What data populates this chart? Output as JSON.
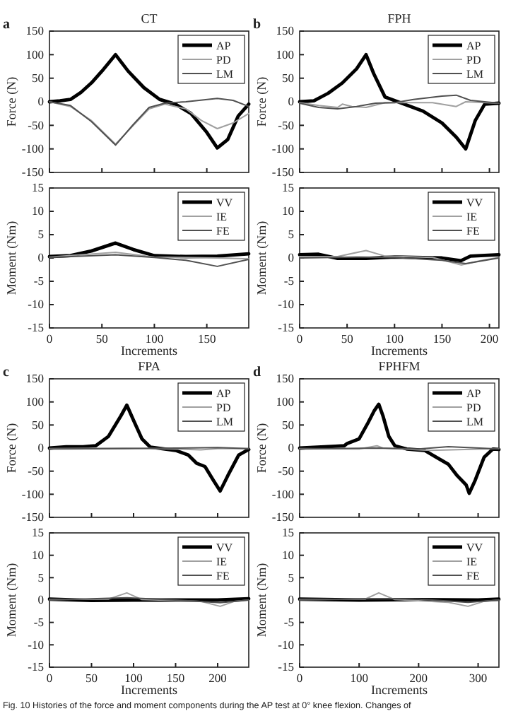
{
  "chart_data": [
    {
      "type": "line",
      "title": "CT",
      "ylabel": "Force (N)",
      "annotations": [
        "a"
      ],
      "xlim": [
        0,
        190
      ],
      "xticks": [
        0,
        50,
        100,
        150
      ],
      "ylim": [
        -150,
        150
      ],
      "yticks": [
        -150,
        -100,
        -50,
        0,
        50,
        100,
        150
      ],
      "tick_labels": "y",
      "legend": "top right",
      "series": [
        {
          "name": "AP",
          "color": "#000000",
          "x": [
            0,
            10,
            20,
            30,
            40,
            50,
            63,
            75,
            90,
            105,
            120,
            135,
            150,
            160,
            170,
            180,
            190
          ],
          "values": [
            0,
            2,
            5,
            20,
            40,
            65,
            100,
            65,
            30,
            5,
            -5,
            -25,
            -65,
            -98,
            -80,
            -30,
            -5
          ]
        },
        {
          "name": "PD",
          "color": "#a0a0a0",
          "x": [
            0,
            20,
            40,
            63,
            80,
            95,
            110,
            130,
            145,
            160,
            175,
            190
          ],
          "values": [
            0,
            -10,
            -40,
            -90,
            -50,
            -15,
            -5,
            -15,
            -40,
            -57,
            -45,
            -25
          ]
        },
        {
          "name": "LM",
          "color": "#505050",
          "x": [
            0,
            20,
            40,
            63,
            80,
            95,
            110,
            130,
            160,
            175,
            190
          ],
          "values": [
            0,
            -8,
            -42,
            -92,
            -48,
            -12,
            -3,
            0,
            7,
            3,
            -10
          ]
        }
      ]
    },
    {
      "type": "line",
      "xlabel": "Increments",
      "ylabel": "Moment (Nm)",
      "xlim": [
        0,
        190
      ],
      "xticks": [
        0,
        50,
        100,
        150
      ],
      "ylim": [
        -15,
        15
      ],
      "yticks": [
        -15,
        -10,
        -5,
        0,
        5,
        10,
        15
      ],
      "legend": "top right",
      "series": [
        {
          "name": "VV",
          "color": "#000000",
          "x": [
            0,
            20,
            40,
            63,
            80,
            100,
            130,
            160,
            190
          ],
          "values": [
            0.3,
            0.5,
            1.5,
            3.2,
            1.8,
            0.5,
            0.3,
            0.4,
            0.9
          ]
        },
        {
          "name": "IE",
          "color": "#a0a0a0",
          "x": [
            0,
            63,
            100,
            160,
            190
          ],
          "values": [
            0.2,
            1.2,
            0.2,
            0,
            -0.2
          ]
        },
        {
          "name": "FE",
          "color": "#505050",
          "x": [
            0,
            63,
            100,
            130,
            160,
            190
          ],
          "values": [
            0.1,
            0.7,
            0.1,
            -0.5,
            -1.8,
            -0.3
          ]
        }
      ]
    },
    {
      "type": "line",
      "title": "FPH",
      "ylabel": "Force (N)",
      "annotations": [
        "b"
      ],
      "xlim": [
        0,
        210
      ],
      "xticks": [
        0,
        50,
        100,
        150,
        200
      ],
      "ylim": [
        -150,
        150
      ],
      "yticks": [
        -150,
        -100,
        -50,
        0,
        50,
        100,
        150
      ],
      "tick_labels": "y",
      "legend": "top right",
      "series": [
        {
          "name": "AP",
          "color": "#000000",
          "x": [
            0,
            15,
            30,
            45,
            60,
            70,
            78,
            90,
            110,
            130,
            150,
            165,
            175,
            185,
            195,
            210
          ],
          "values": [
            0,
            2,
            18,
            40,
            70,
            100,
            60,
            10,
            -5,
            -20,
            -45,
            -75,
            -100,
            -40,
            -5,
            -3
          ]
        },
        {
          "name": "PD",
          "color": "#a0a0a0",
          "x": [
            0,
            20,
            40,
            45,
            55,
            70,
            90,
            110,
            140,
            165,
            175,
            210
          ],
          "values": [
            -2,
            -8,
            -12,
            -5,
            -10,
            -12,
            -2,
            -2,
            -2,
            -10,
            0,
            -3
          ]
        },
        {
          "name": "LM",
          "color": "#505050",
          "x": [
            0,
            20,
            40,
            60,
            80,
            100,
            120,
            150,
            165,
            180,
            210
          ],
          "values": [
            -3,
            -12,
            -15,
            -10,
            -3,
            -2,
            5,
            12,
            14,
            3,
            -3
          ]
        }
      ]
    },
    {
      "type": "line",
      "xlabel": "Increments",
      "ylabel": "Moment (Nm)",
      "xlim": [
        0,
        210
      ],
      "xticks": [
        0,
        50,
        100,
        150,
        200
      ],
      "ylim": [
        -15,
        15
      ],
      "yticks": [
        -15,
        -10,
        -5,
        0,
        5,
        10,
        15
      ],
      "legend": "top right",
      "series": [
        {
          "name": "VV",
          "color": "#000000",
          "x": [
            0,
            20,
            40,
            70,
            100,
            150,
            170,
            180,
            210
          ],
          "values": [
            0.7,
            0.8,
            -0.1,
            -0.1,
            0.2,
            0,
            -0.6,
            0.4,
            0.7
          ]
        },
        {
          "name": "IE",
          "color": "#a0a0a0",
          "x": [
            0,
            40,
            70,
            90,
            140,
            170,
            190,
            210
          ],
          "values": [
            0.3,
            0.3,
            1.6,
            0.4,
            0.1,
            -1.5,
            -0.6,
            0.1
          ]
        },
        {
          "name": "FE",
          "color": "#505050",
          "x": [
            0,
            60,
            100,
            150,
            175,
            210
          ],
          "values": [
            0,
            0.2,
            0.1,
            -0.5,
            -1.2,
            0
          ]
        }
      ]
    },
    {
      "type": "line",
      "title": "FPA",
      "ylabel": "Force (N)",
      "annotations": [
        "c"
      ],
      "xlim": [
        0,
        237
      ],
      "xticks": [
        0,
        50,
        100,
        150,
        200
      ],
      "ylim": [
        -150,
        150
      ],
      "yticks": [
        -150,
        -100,
        -50,
        0,
        50,
        100,
        150
      ],
      "tick_labels": "y",
      "legend": "top right",
      "series": [
        {
          "name": "AP",
          "color": "#000000",
          "x": [
            0,
            20,
            40,
            55,
            70,
            85,
            92,
            100,
            110,
            120,
            150,
            165,
            175,
            185,
            195,
            203,
            212,
            225,
            237
          ],
          "values": [
            0,
            3,
            3,
            5,
            25,
            70,
            93,
            60,
            20,
            2,
            -5,
            -15,
            -33,
            -40,
            -70,
            -93,
            -60,
            -15,
            -3
          ]
        },
        {
          "name": "PD",
          "color": "#a0a0a0",
          "x": [
            0,
            90,
            150,
            180,
            200,
            237
          ],
          "values": [
            -1,
            0,
            -2,
            -4,
            -1,
            -1
          ]
        },
        {
          "name": "LM",
          "color": "#505050",
          "x": [
            0,
            90,
            150,
            200,
            237
          ],
          "values": [
            -2,
            -1,
            0,
            1,
            -1
          ]
        }
      ]
    },
    {
      "type": "line",
      "xlabel": "Increments",
      "ylabel": "Moment (Nm)",
      "xlim": [
        0,
        237
      ],
      "xticks": [
        0,
        50,
        100,
        150,
        200
      ],
      "ylim": [
        -15,
        15
      ],
      "yticks": [
        -15,
        -10,
        -5,
        0,
        5,
        10,
        15
      ],
      "legend": "top right",
      "series": [
        {
          "name": "VV",
          "color": "#000000",
          "x": [
            0,
            50,
            100,
            150,
            200,
            237
          ],
          "values": [
            0.2,
            -0.1,
            0,
            0,
            0,
            0.3
          ]
        },
        {
          "name": "IE",
          "color": "#a0a0a0",
          "x": [
            0,
            70,
            92,
            110,
            180,
            203,
            220,
            237
          ],
          "values": [
            0.1,
            0.2,
            1.6,
            0.1,
            -0.3,
            -1.4,
            -0.3,
            0
          ]
        },
        {
          "name": "FE",
          "color": "#505050",
          "x": [
            0,
            92,
            150,
            203,
            237
          ],
          "values": [
            0,
            0.5,
            0,
            -0.6,
            0
          ]
        }
      ]
    },
    {
      "type": "line",
      "title": "FPHFM",
      "ylabel": "Force (N)",
      "annotations": [
        "d"
      ],
      "xlim": [
        0,
        335
      ],
      "xticks": [
        0,
        100,
        200,
        300
      ],
      "ylim": [
        -150,
        150
      ],
      "yticks": [
        -150,
        -100,
        -50,
        0,
        50,
        100,
        150
      ],
      "tick_labels": "y",
      "legend": "top right",
      "series": [
        {
          "name": "AP",
          "color": "#000000",
          "x": [
            0,
            30,
            60,
            75,
            80,
            100,
            115,
            125,
            133,
            140,
            150,
            160,
            180,
            210,
            230,
            250,
            265,
            280,
            285,
            295,
            310,
            325,
            335
          ],
          "values": [
            0,
            2,
            4,
            5,
            10,
            20,
            55,
            80,
            95,
            70,
            25,
            5,
            -2,
            -5,
            -20,
            -35,
            -60,
            -80,
            -98,
            -70,
            -20,
            -2,
            -3
          ]
        },
        {
          "name": "PD",
          "color": "#a0a0a0",
          "x": [
            0,
            100,
            130,
            140,
            220,
            335
          ],
          "values": [
            -1,
            -2,
            5,
            0,
            -5,
            -1
          ]
        },
        {
          "name": "LM",
          "color": "#505050",
          "x": [
            0,
            130,
            200,
            250,
            335
          ],
          "values": [
            -2,
            0,
            -2,
            3,
            -2
          ]
        }
      ]
    },
    {
      "type": "line",
      "xlabel": "Increments",
      "ylabel": "Moment (Nm)",
      "annotations": [
        "Fig. 10  Histories of the force and moment components during the AP test at 0° knee flexion. Changes of"
      ],
      "xlim": [
        0,
        335
      ],
      "xticks": [
        0,
        100,
        200,
        300
      ],
      "ylim": [
        -15,
        15
      ],
      "yticks": [
        -15,
        -10,
        -5,
        0,
        5,
        10,
        15
      ],
      "legend": "top right",
      "series": [
        {
          "name": "VV",
          "color": "#000000",
          "x": [
            0,
            100,
            200,
            300,
            335
          ],
          "values": [
            0.2,
            0,
            0.1,
            0,
            0.2
          ]
        },
        {
          "name": "IE",
          "color": "#a0a0a0",
          "x": [
            0,
            110,
            133,
            160,
            250,
            283,
            310,
            335
          ],
          "values": [
            0.1,
            0.2,
            1.6,
            0.1,
            -0.5,
            -1.4,
            -0.3,
            0
          ]
        },
        {
          "name": "FE",
          "color": "#505050",
          "x": [
            0,
            133,
            200,
            283,
            335
          ],
          "values": [
            0,
            0.3,
            0.2,
            -0.5,
            0
          ]
        }
      ]
    }
  ]
}
